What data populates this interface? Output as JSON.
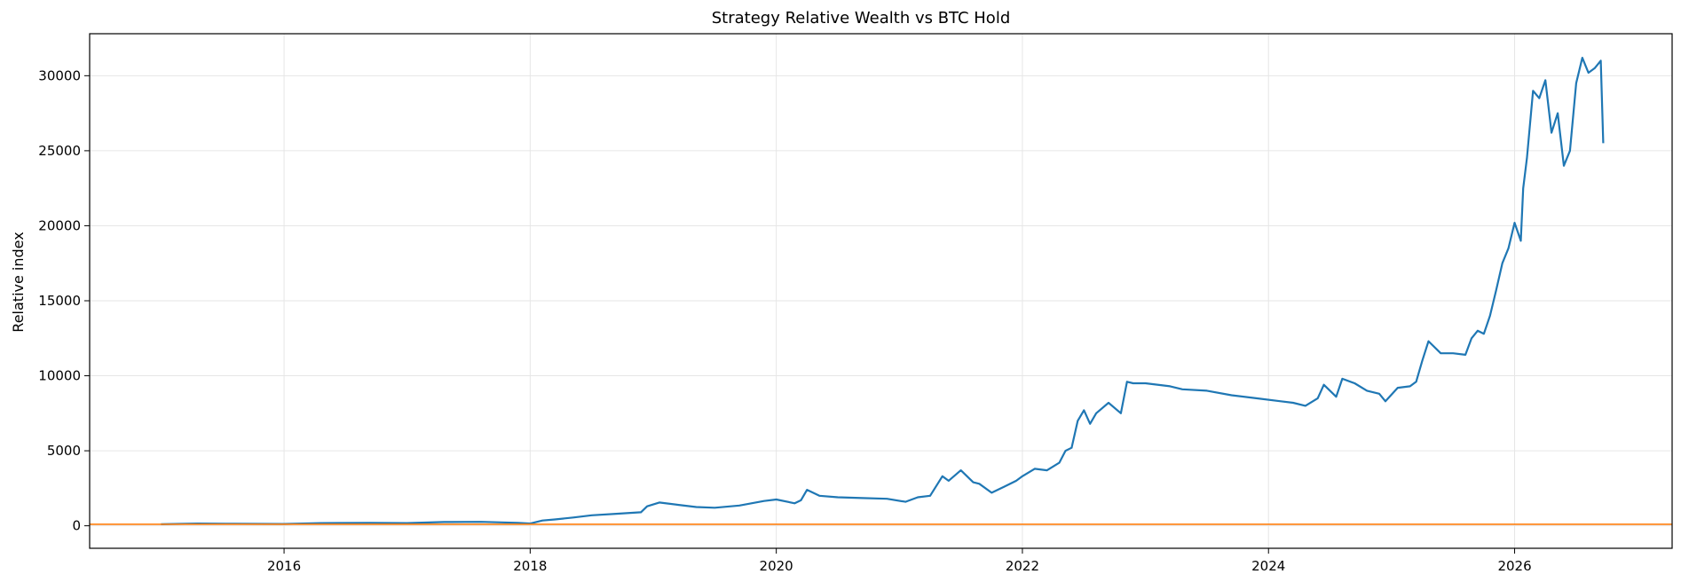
{
  "chart_data": {
    "type": "line",
    "title": "Strategy Relative Wealth vs BTC Hold",
    "xlabel": "",
    "ylabel": "Relative index",
    "xlim": [
      2014.42,
      2027.28
    ],
    "ylim": [
      -1500,
      32800
    ],
    "grid": true,
    "x_ticks": [
      2016,
      2018,
      2020,
      2022,
      2024,
      2026
    ],
    "y_ticks": [
      0,
      5000,
      10000,
      15000,
      20000,
      25000,
      30000
    ],
    "series": [
      {
        "color": "#1f77b4",
        "x": [
          2015.0,
          2015.3,
          2015.6,
          2016.0,
          2016.3,
          2016.7,
          2017.0,
          2017.3,
          2017.6,
          2017.9,
          2018.0,
          2018.1,
          2018.2,
          2018.35,
          2018.5,
          2018.7,
          2018.9,
          2018.95,
          2019.05,
          2019.2,
          2019.35,
          2019.5,
          2019.7,
          2019.9,
          2020.0,
          2020.15,
          2020.2,
          2020.25,
          2020.35,
          2020.5,
          2020.7,
          2020.9,
          2021.05,
          2021.15,
          2021.25,
          2021.35,
          2021.4,
          2021.5,
          2021.6,
          2021.65,
          2021.75,
          2021.85,
          2021.95,
          2022.0,
          2022.1,
          2022.2,
          2022.3,
          2022.35,
          2022.4,
          2022.45,
          2022.5,
          2022.55,
          2022.6,
          2022.7,
          2022.8,
          2022.85,
          2022.9,
          2023.0,
          2023.2,
          2023.3,
          2023.5,
          2023.7,
          2023.9,
          2024.1,
          2024.2,
          2024.3,
          2024.4,
          2024.45,
          2024.55,
          2024.6,
          2024.7,
          2024.8,
          2024.9,
          2024.95,
          2025.05,
          2025.15,
          2025.2,
          2025.25,
          2025.3,
          2025.4,
          2025.5,
          2025.6,
          2025.65,
          2025.7,
          2025.75,
          2025.8,
          2025.85,
          2025.9,
          2025.95,
          2026.0,
          2026.05,
          2026.07,
          2026.1,
          2026.15,
          2026.2,
          2026.25,
          2026.3,
          2026.35,
          2026.4,
          2026.45,
          2026.5,
          2026.55,
          2026.6,
          2026.65,
          2026.7,
          2026.72
        ],
        "y": [
          100,
          150,
          130,
          120,
          180,
          200,
          180,
          250,
          260,
          200,
          150,
          350,
          420,
          550,
          700,
          800,
          900,
          1300,
          1550,
          1400,
          1250,
          1200,
          1350,
          1650,
          1750,
          1500,
          1700,
          2400,
          2000,
          1900,
          1850,
          1800,
          1600,
          1900,
          2000,
          3300,
          3000,
          3700,
          2900,
          2800,
          2200,
          2600,
          3000,
          3300,
          3800,
          3700,
          4200,
          5000,
          5200,
          7000,
          7700,
          6800,
          7500,
          8200,
          7500,
          9600,
          9500,
          9500,
          9300,
          9100,
          9000,
          8700,
          8500,
          8300,
          8200,
          8000,
          8500,
          9400,
          8600,
          9800,
          9500,
          9000,
          8800,
          8300,
          9200,
          9300,
          9600,
          11000,
          12300,
          11500,
          11500,
          11400,
          12500,
          13000,
          12800,
          14000,
          15700,
          17500,
          18500,
          20200,
          19000,
          22500,
          24500,
          29000,
          28500,
          29700,
          26200,
          27500,
          24000,
          25000,
          29500,
          31200,
          30200,
          30500,
          31000,
          25500
        ]
      },
      {
        "color": "#ff7f0e",
        "x": [
          2014.42,
          2027.28
        ],
        "y": [
          100,
          100
        ]
      }
    ]
  }
}
